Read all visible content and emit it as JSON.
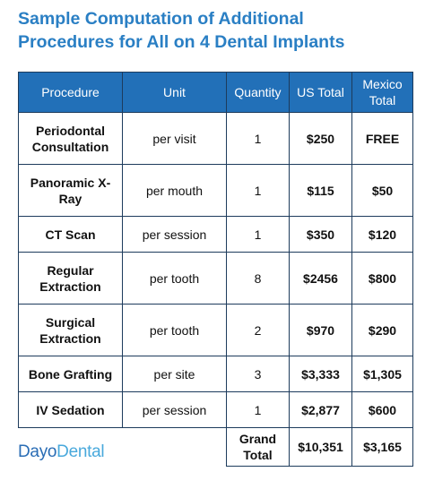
{
  "header": {
    "title": [
      "Sample Computation of Additional",
      "Procedures for All on 4 Dental Implants"
    ]
  },
  "table": {
    "columns": [
      "Procedure",
      "Unit",
      "Quantity",
      "US Total",
      "Mexico Total"
    ],
    "rows": [
      [
        "Periodontal Consultation",
        "per visit",
        "1",
        "$250",
        "FREE"
      ],
      [
        "Panoramic X-Ray",
        "per mouth",
        "1",
        "$115",
        "$50"
      ],
      [
        "CT Scan",
        "per session",
        "1",
        "$350",
        "$120"
      ],
      [
        "Regular Extraction",
        "per tooth",
        "8",
        "$2456",
        "$800"
      ],
      [
        "Surgical Extraction",
        "per tooth",
        "2",
        "$970",
        "$290"
      ],
      [
        "Bone Grafting",
        "per site",
        "3",
        "$3,333",
        "$1,305"
      ],
      [
        "IV Sedation",
        "per session",
        "1",
        "$2,877",
        "$600"
      ]
    ],
    "total": [
      "Grand Total",
      "$10,351",
      "$3,165"
    ]
  },
  "brand": [
    "Dayo",
    "Dental"
  ]
}
